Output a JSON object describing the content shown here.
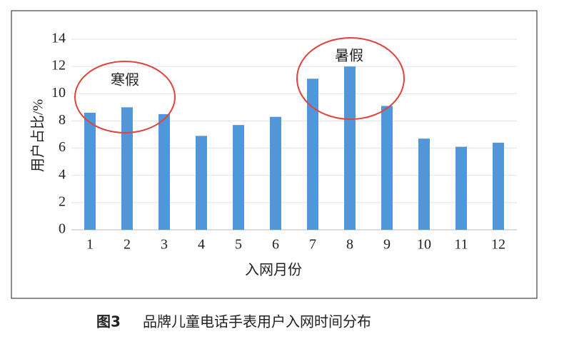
{
  "chart_data": {
    "type": "bar",
    "x_label": "入网月份",
    "y_label": "用户占比/%",
    "categories": [
      "1",
      "2",
      "3",
      "4",
      "5",
      "6",
      "7",
      "8",
      "9",
      "10",
      "11",
      "12"
    ],
    "values": [
      8.6,
      9.0,
      8.5,
      6.9,
      7.7,
      8.3,
      11.1,
      12.0,
      9.1,
      6.7,
      6.1,
      6.4
    ],
    "color": "#4f97d8",
    "ylim": [
      0,
      14
    ],
    "yticks": [
      0,
      2,
      4,
      6,
      8,
      10,
      12,
      14
    ],
    "grid": true,
    "annotations": [
      "寒假",
      "暑假"
    ]
  },
  "caption": {
    "label": "图3",
    "text": "品牌儿童电话手表用户入网时间分布"
  }
}
